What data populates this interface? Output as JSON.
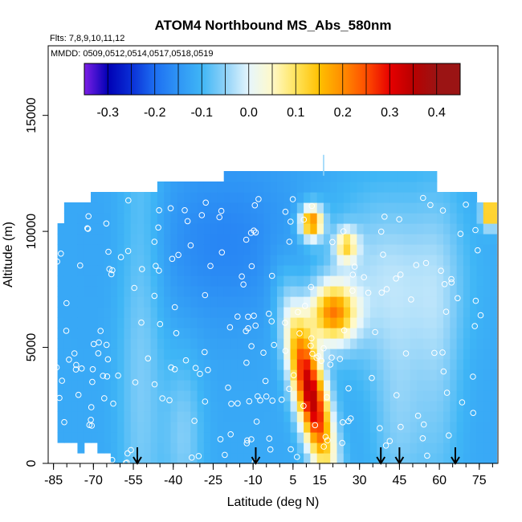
{
  "chart_data": {
    "type": "heatmap",
    "title": "ATOM4 Northbound MS_Abs_580nm",
    "subtitle_flights": "Flts: 7,8,9,10,11,12",
    "subtitle_dates": "MMDD: 0509,0512,0514,0517,0518,0519",
    "xlabel": "Latitude (deg N)",
    "ylabel": "Altitude (m)",
    "xlim": [
      -87,
      82
    ],
    "ylim": [
      0,
      18000
    ],
    "x_ticks": [
      -85,
      -70,
      -55,
      -40,
      -25,
      -10,
      5,
      15,
      30,
      45,
      60,
      75
    ],
    "y_ticks": [
      0,
      5000,
      10000,
      15000
    ],
    "colorbar": {
      "ticks": [
        "-0.3",
        "-0.2",
        "-0.1",
        "0.0",
        "0.1",
        "0.2",
        "0.3",
        "0.4"
      ],
      "values": [
        -0.35,
        -0.3,
        -0.25,
        -0.2,
        -0.15,
        -0.1,
        -0.05,
        0,
        0.05,
        0.1,
        0.15,
        0.2,
        0.25,
        0.3,
        0.35,
        0.4,
        0.45
      ],
      "colors": [
        "#7d1fe6",
        "#0000b4",
        "#0a2fd6",
        "#1d6ff2",
        "#2f95f5",
        "#3fb6f6",
        "#8fd2f8",
        "#e6f6fd",
        "#fff9c8",
        "#ffe45c",
        "#ffc000",
        "#ff8c00",
        "#ff4d00",
        "#e60000",
        "#b80000",
        "#9b1414"
      ]
    },
    "arrow_latitudes": [
      -53.5,
      -9,
      38,
      45,
      66
    ],
    "grid": false,
    "legend_placement": "top (inside plot)"
  }
}
